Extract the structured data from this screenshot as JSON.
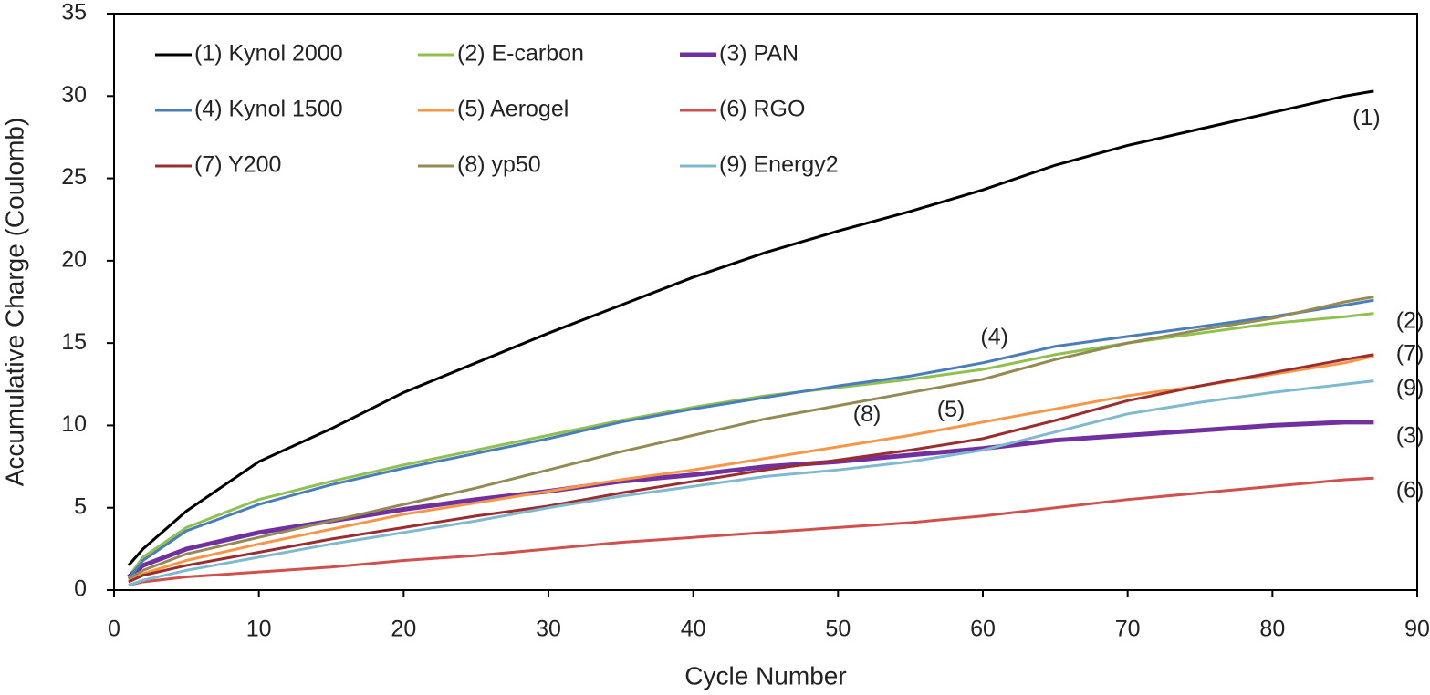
{
  "chart_data": {
    "type": "line",
    "x_label": "Cycle Number",
    "y_label": "Accumulative Charge (Coulomb)",
    "x": [
      1,
      2,
      5,
      10,
      15,
      20,
      25,
      30,
      35,
      40,
      45,
      50,
      55,
      60,
      65,
      70,
      75,
      80,
      85,
      87
    ],
    "series": [
      {
        "name": "(1) Kynol 2000",
        "color": "#000000",
        "values": [
          1.5,
          2.5,
          4.8,
          7.8,
          9.8,
          12,
          13.8,
          15.6,
          17.3,
          19,
          20.5,
          21.8,
          23,
          24.3,
          25.8,
          27,
          28,
          29,
          30,
          30.3
        ]
      },
      {
        "name": "(2) E-carbon",
        "color": "#8fc050",
        "values": [
          0.8,
          2,
          3.8,
          5.5,
          6.6,
          7.6,
          8.5,
          9.4,
          10.3,
          11.1,
          11.8,
          12.3,
          12.8,
          13.4,
          14.3,
          15,
          15.6,
          16.2,
          16.6,
          16.8
        ]
      },
      {
        "name": "(3) PAN",
        "color": "#7030a0",
        "values": [
          0.8,
          1.5,
          2.5,
          3.5,
          4.2,
          4.9,
          5.5,
          6,
          6.6,
          7,
          7.5,
          7.8,
          8.2,
          8.6,
          9.1,
          9.4,
          9.7,
          10,
          10.2,
          10.2
        ]
      },
      {
        "name": "(4) Kynol 1500",
        "color": "#4a7ebb",
        "values": [
          0.7,
          1.8,
          3.6,
          5.2,
          6.4,
          7.4,
          8.3,
          9.2,
          10.2,
          11,
          11.7,
          12.4,
          13,
          13.8,
          14.8,
          15.4,
          16,
          16.6,
          17.3,
          17.6
        ]
      },
      {
        "name": "(5) Aerogel",
        "color": "#f79646",
        "values": [
          0.6,
          1,
          1.8,
          2.8,
          3.7,
          4.6,
          5.3,
          6,
          6.7,
          7.3,
          8,
          8.7,
          9.4,
          10.2,
          11,
          11.8,
          12.4,
          13.1,
          13.8,
          14.2
        ]
      },
      {
        "name": "(6) RGO",
        "color": "#d0504d",
        "values": [
          0.3,
          0.5,
          0.8,
          1.1,
          1.4,
          1.8,
          2.1,
          2.5,
          2.9,
          3.2,
          3.5,
          3.8,
          4.1,
          4.5,
          5,
          5.5,
          5.9,
          6.3,
          6.7,
          6.8
        ]
      },
      {
        "name": "(7) Y200",
        "color": "#9b2d2f",
        "values": [
          0.5,
          0.9,
          1.5,
          2.3,
          3.1,
          3.8,
          4.5,
          5.1,
          5.9,
          6.6,
          7.3,
          7.9,
          8.5,
          9.2,
          10.3,
          11.5,
          12.4,
          13.2,
          14,
          14.3
        ]
      },
      {
        "name": "(8) yp50",
        "color": "#948a54",
        "values": [
          0.7,
          1.2,
          2.2,
          3.2,
          4.2,
          5.2,
          6.2,
          7.3,
          8.4,
          9.4,
          10.4,
          11.2,
          12,
          12.8,
          14,
          15,
          15.8,
          16.5,
          17.5,
          17.8
        ]
      },
      {
        "name": "(9) Energy2",
        "color": "#7fb9d0",
        "values": [
          0.3,
          0.6,
          1.2,
          2,
          2.8,
          3.5,
          4.2,
          5,
          5.7,
          6.3,
          6.9,
          7.3,
          7.8,
          8.5,
          9.6,
          10.7,
          11.4,
          12,
          12.5,
          12.7
        ]
      }
    ],
    "annotations": [
      "(1)",
      "(2)",
      "(7)",
      "(9)",
      "(3)",
      "(6)",
      "(4)",
      "(8)",
      "(5)"
    ],
    "xlim": [
      0,
      90
    ],
    "xticks": [
      0,
      10,
      20,
      30,
      40,
      50,
      60,
      70,
      80,
      90
    ],
    "ylim": [
      0,
      35
    ],
    "yticks": [
      0,
      5,
      10,
      15,
      20,
      25,
      30,
      35
    ],
    "grid": false,
    "legend": "top-left"
  }
}
